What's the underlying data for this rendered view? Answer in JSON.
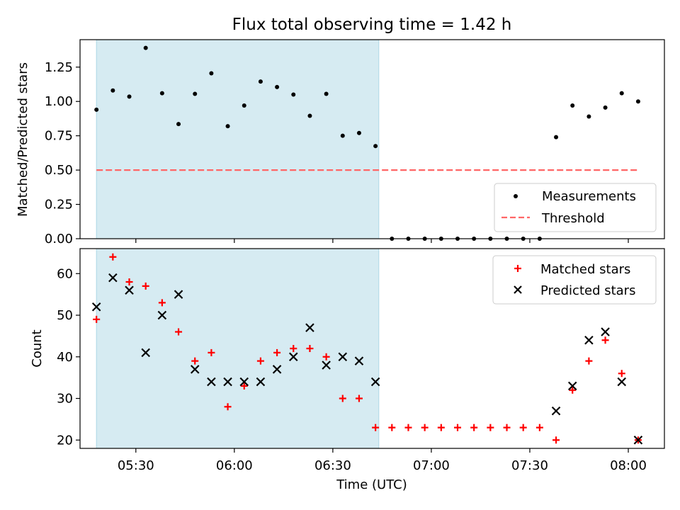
{
  "colors": {
    "shade": "#add8e6",
    "measurement": "#000000",
    "threshold": "#ff6666",
    "matched": "#ff0000",
    "predicted": "#000000"
  },
  "chart_data": [
    {
      "type": "scatter",
      "title": "Flux total observing time = 1.42 h",
      "xlabel": "",
      "ylabel": "Matched/Predicted stars",
      "xlim": [
        "05:13",
        "08:11"
      ],
      "ylim": [
        0,
        1.45
      ],
      "yticks": [
        "0.00",
        "0.25",
        "0.50",
        "0.75",
        "1.00",
        "1.25"
      ],
      "x_tick_times": [
        "05:30",
        "06:00",
        "06:30",
        "07:00",
        "07:30",
        "08:00"
      ],
      "shaded_span": [
        "05:18",
        "06:44"
      ],
      "legend": [
        "Measurements",
        "Threshold"
      ],
      "legend_position": "lower-right",
      "grid": false,
      "series": [
        {
          "name": "Measurements",
          "marker": "dot",
          "x": [
            "05:18",
            "05:23",
            "05:28",
            "05:33",
            "05:38",
            "05:43",
            "05:48",
            "05:53",
            "05:58",
            "06:03",
            "06:08",
            "06:13",
            "06:18",
            "06:23",
            "06:28",
            "06:33",
            "06:38",
            "06:43",
            "06:48",
            "06:53",
            "06:58",
            "07:03",
            "07:08",
            "07:13",
            "07:18",
            "07:23",
            "07:28",
            "07:33",
            "07:38",
            "07:43",
            "07:48",
            "07:53",
            "07:58",
            "08:03"
          ],
          "y": [
            0.94,
            1.08,
            1.035,
            1.39,
            1.06,
            0.835,
            1.055,
            1.205,
            0.82,
            0.97,
            1.145,
            1.105,
            1.05,
            0.895,
            1.055,
            0.75,
            0.77,
            0.675,
            0,
            0,
            0,
            0,
            0,
            0,
            0,
            0,
            0,
            0,
            0.74,
            0.97,
            0.89,
            0.955,
            1.06,
            1.0
          ]
        },
        {
          "name": "Threshold",
          "style": "dashed",
          "x": [
            "05:18",
            "08:03"
          ],
          "y": [
            0.5,
            0.5
          ]
        }
      ]
    },
    {
      "type": "scatter",
      "title": "",
      "xlabel": "Time (UTC)",
      "ylabel": "Count",
      "xlim": [
        "05:13",
        "08:11"
      ],
      "ylim": [
        18,
        66
      ],
      "yticks": [
        "20",
        "30",
        "40",
        "50",
        "60"
      ],
      "x_tick_labels": [
        "05:30",
        "06:00",
        "06:30",
        "07:00",
        "07:30",
        "08:00"
      ],
      "shaded_span": [
        "05:18",
        "06:44"
      ],
      "legend": [
        "Matched stars",
        "Predicted stars"
      ],
      "legend_position": "upper-right",
      "grid": false,
      "series": [
        {
          "name": "Matched stars",
          "marker": "plus",
          "x": [
            "05:18",
            "05:23",
            "05:28",
            "05:33",
            "05:38",
            "05:43",
            "05:48",
            "05:53",
            "05:58",
            "06:03",
            "06:08",
            "06:13",
            "06:18",
            "06:23",
            "06:28",
            "06:33",
            "06:38",
            "06:43",
            "06:48",
            "06:53",
            "06:58",
            "07:03",
            "07:08",
            "07:13",
            "07:18",
            "07:23",
            "07:28",
            "07:33",
            "07:38",
            "07:43",
            "07:48",
            "07:53",
            "07:58",
            "08:03"
          ],
          "y": [
            49,
            64,
            58,
            57,
            53,
            46,
            39,
            41,
            28,
            33,
            39,
            41,
            42,
            42,
            40,
            30,
            30,
            23,
            23,
            23,
            23,
            23,
            23,
            23,
            23,
            23,
            23,
            23,
            20,
            32,
            39,
            44,
            36,
            20
          ]
        },
        {
          "name": "Predicted stars",
          "marker": "x",
          "x": [
            "05:18",
            "05:23",
            "05:28",
            "05:33",
            "05:38",
            "05:43",
            "05:48",
            "05:53",
            "05:58",
            "06:03",
            "06:08",
            "06:13",
            "06:18",
            "06:23",
            "06:28",
            "06:33",
            "06:38",
            "06:43",
            "07:38",
            "07:43",
            "07:48",
            "07:53",
            "07:58",
            "08:03"
          ],
          "y": [
            52,
            59,
            56,
            41,
            50,
            55,
            37,
            34,
            34,
            34,
            34,
            37,
            40,
            47,
            38,
            40,
            39,
            34,
            27,
            33,
            44,
            46,
            34,
            20
          ]
        }
      ]
    }
  ]
}
